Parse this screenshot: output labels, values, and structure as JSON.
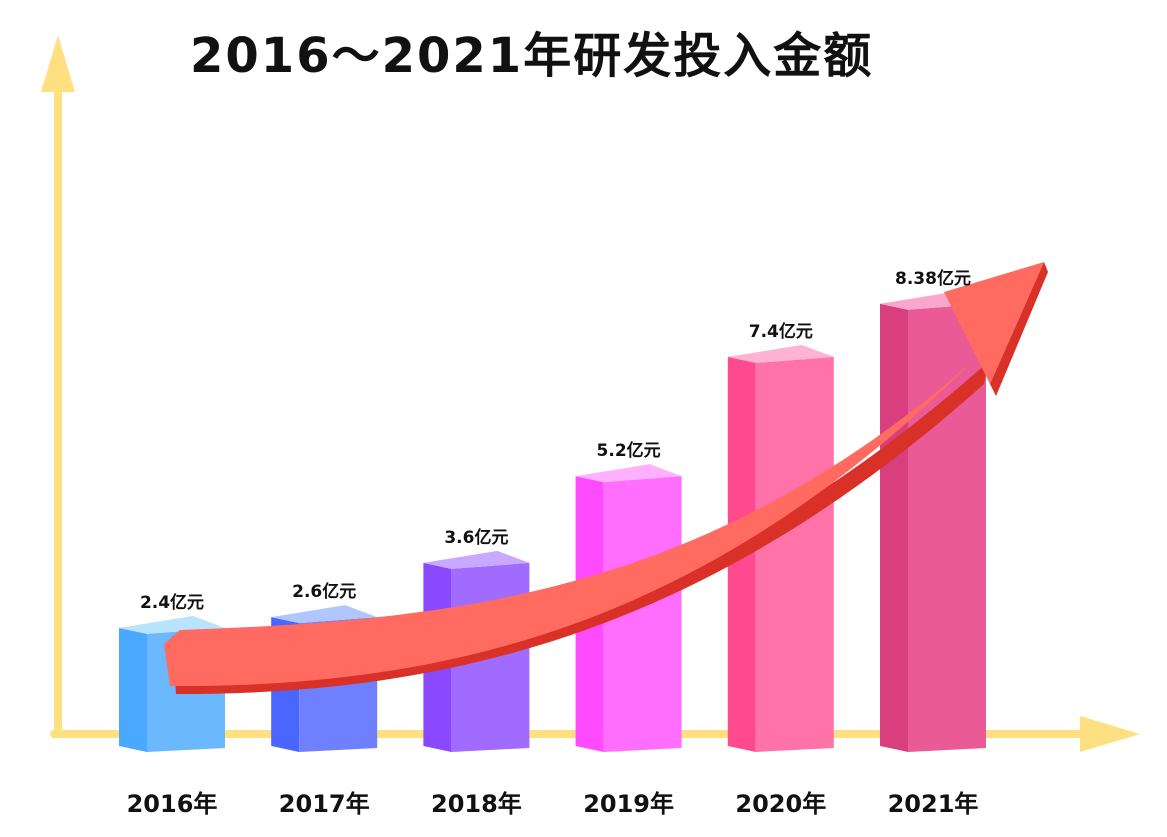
{
  "chart_data": {
    "type": "bar",
    "title": "2016～2021年研发投入金额",
    "xlabel": "",
    "ylabel": "",
    "unit": "亿元",
    "categories": [
      "2016年",
      "2017年",
      "2018年",
      "2019年",
      "2020年",
      "2021年"
    ],
    "values": [
      2.4,
      2.6,
      3.6,
      5.2,
      7.4,
      8.38
    ],
    "value_labels": [
      "2.4亿元",
      "2.6亿元",
      "3.6亿元",
      "5.2亿元",
      "7.4亿元",
      "8.38亿元"
    ],
    "grid": false,
    "legend": "none",
    "trend_arrow": true
  },
  "colors": {
    "axis": "#FFE080",
    "arrow": "#FF6B60",
    "arrow_shadow": "#D93028",
    "bars": [
      {
        "front": "#6BB8FF",
        "side": "#4AA8FF",
        "top": "#B8E4FF"
      },
      {
        "front": "#6F80FF",
        "side": "#4A66FF",
        "top": "#AFC6FF"
      },
      {
        "front": "#A26BFF",
        "side": "#8A48FF",
        "top": "#C9A9FF"
      },
      {
        "front": "#FF6EFF",
        "side": "#FF4AFF",
        "top": "#FFB0FF"
      },
      {
        "front": "#FF73A8",
        "side": "#FF4A90",
        "top": "#FFB3D3"
      },
      {
        "front": "#EA5A96",
        "side": "#D93F7E",
        "top": "#F8A8CC"
      }
    ]
  }
}
